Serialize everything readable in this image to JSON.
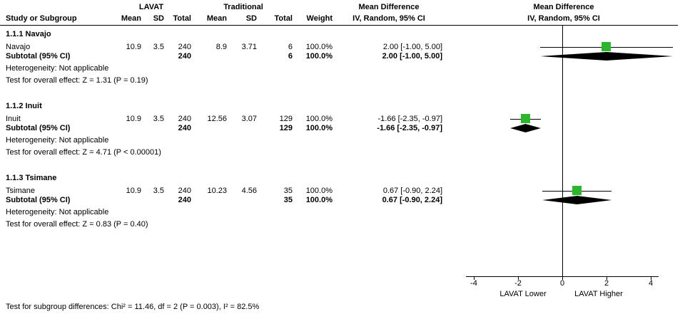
{
  "chart_data": {
    "type": "forest",
    "effect_measure": "Mean Difference",
    "method": "IV, Random, 95% CI",
    "columns": {
      "study": "Study or Subgroup",
      "group1": "LAVAT",
      "group2": "Traditional",
      "mean": "Mean",
      "sd": "SD",
      "total": "Total",
      "weight": "Weight",
      "effect_header": "Mean Difference",
      "method_header": "IV, Random, 95% CI"
    },
    "subgroups": [
      {
        "title": "1.1.1 Navajo",
        "study": {
          "name": "Navajo",
          "mean1": "10.9",
          "sd1": "3.5",
          "total1": "240",
          "mean2": "8.9",
          "sd2": "3.71",
          "total2": "6",
          "weight": "100.0%",
          "ci_text": "2.00 [-1.00, 5.00]",
          "md": 2.0,
          "low": -1.0,
          "high": 5.0
        },
        "subtotal": {
          "label": "Subtotal (95% CI)",
          "total1": "240",
          "total2": "6",
          "weight": "100.0%",
          "ci_text": "2.00 [-1.00, 5.00]",
          "md": 2.0,
          "low": -1.0,
          "high": 5.0
        },
        "heterogeneity": "Heterogeneity: Not applicable",
        "overall": "Test for overall effect: Z = 1.31 (P = 0.19)"
      },
      {
        "title": "1.1.2 Inuit",
        "study": {
          "name": "Inuit",
          "mean1": "10.9",
          "sd1": "3.5",
          "total1": "240",
          "mean2": "12.56",
          "sd2": "3.07",
          "total2": "129",
          "weight": "100.0%",
          "ci_text": "-1.66 [-2.35, -0.97]",
          "md": -1.66,
          "low": -2.35,
          "high": -0.97
        },
        "subtotal": {
          "label": "Subtotal (95% CI)",
          "total1": "240",
          "total2": "129",
          "weight": "100.0%",
          "ci_text": "-1.66 [-2.35, -0.97]",
          "md": -1.66,
          "low": -2.35,
          "high": -0.97
        },
        "heterogeneity": "Heterogeneity: Not applicable",
        "overall": "Test for overall effect: Z = 4.71 (P < 0.00001)"
      },
      {
        "title": "1.1.3 Tsimane",
        "study": {
          "name": "Tsimane",
          "mean1": "10.9",
          "sd1": "3.5",
          "total1": "240",
          "mean2": "10.23",
          "sd2": "4.56",
          "total2": "35",
          "weight": "100.0%",
          "ci_text": "0.67 [-0.90, 2.24]",
          "md": 0.67,
          "low": -0.9,
          "high": 2.24
        },
        "subtotal": {
          "label": "Subtotal (95% CI)",
          "total1": "240",
          "total2": "35",
          "weight": "100.0%",
          "ci_text": "0.67 [-0.90, 2.24]",
          "md": 0.67,
          "low": -0.9,
          "high": 2.24
        },
        "heterogeneity": "Heterogeneity: Not applicable",
        "overall": "Test for overall effect: Z = 0.83 (P = 0.40)"
      }
    ],
    "axis": {
      "ticks": [
        -4,
        -2,
        0,
        2,
        4
      ],
      "xlim": [
        -4.35,
        4.35
      ],
      "label_left": "LAVAT Lower",
      "label_right": "LAVAT Higher"
    },
    "footer": "Test for subgroup differences: Chi² = 11.46, df = 2 (P = 0.003), I² = 82.5%",
    "colors": {
      "square": "#2DB52D",
      "diamond": "#000000",
      "line": "#000000"
    }
  }
}
